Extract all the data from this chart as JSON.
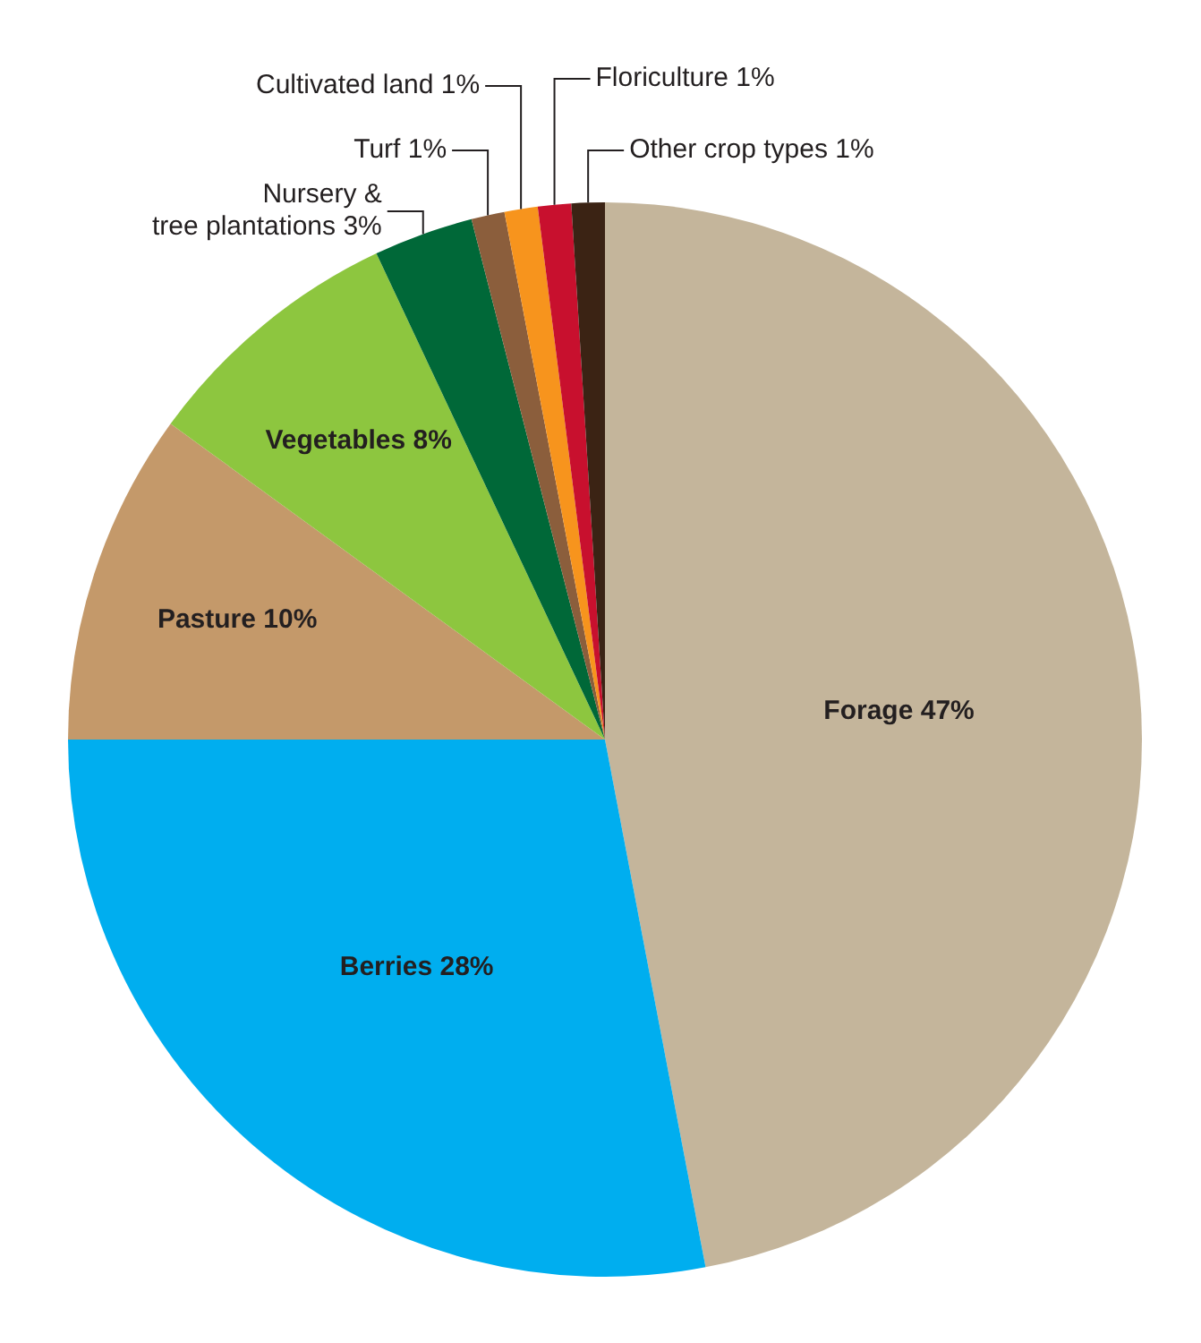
{
  "chart_data": {
    "type": "pie",
    "categories": [
      "Forage",
      "Berries",
      "Pasture",
      "Vegetables",
      "Nursery &\ntree plantations",
      "Turf",
      "Cultivated land",
      "Floriculture",
      "Other crop types"
    ],
    "values": [
      47,
      28,
      10,
      8,
      3,
      1,
      1,
      1,
      1
    ],
    "value_labels": [
      "47%",
      "28%",
      "10%",
      "8%",
      "3%",
      "1%",
      "1%",
      "1%",
      "1%"
    ],
    "colors": [
      "#c4b59b",
      "#00aeef",
      "#c4996a",
      "#8dc63f",
      "#006838",
      "#8b5e3c",
      "#f7941d",
      "#c8102e",
      "#3b2314"
    ],
    "legend": false
  }
}
